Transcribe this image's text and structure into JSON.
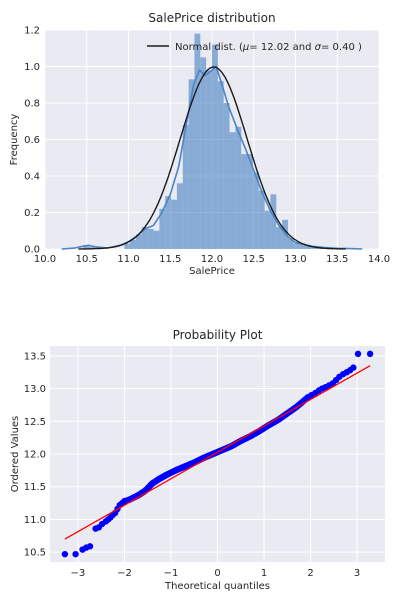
{
  "figure_title": "",
  "chart_data": [
    {
      "type": "bar",
      "title": "SalePrice distribution",
      "xlabel": "SalePrice",
      "ylabel": "Frequency",
      "xlim": [
        10.0,
        14.0
      ],
      "ylim": [
        0.0,
        1.2
      ],
      "xticks": [
        "10.0",
        "10.5",
        "11.0",
        "11.5",
        "12.0",
        "12.5",
        "13.0",
        "13.5",
        "14.0"
      ],
      "yticks": [
        "0.0",
        "0.2",
        "0.4",
        "0.6",
        "0.8",
        "1.0",
        "1.2"
      ],
      "grid": true,
      "legend_position": "top-right",
      "legend_label": "Normal dist. ($\\mu=$ 12.02 and $\\sigma=$ 0.40 )",
      "legend_mu": "12.02",
      "legend_sigma": "0.40",
      "hist_color": "#4c84c4",
      "bins": [
        {
          "x0": 10.46,
          "x1": 10.53,
          "height": 0.02
        },
        {
          "x0": 10.53,
          "x1": 10.6,
          "height": 0.01
        },
        {
          "x0": 10.95,
          "x1": 11.02,
          "height": 0.03
        },
        {
          "x0": 11.02,
          "x1": 11.09,
          "height": 0.05
        },
        {
          "x0": 11.09,
          "x1": 11.16,
          "height": 0.08
        },
        {
          "x0": 11.16,
          "x1": 11.23,
          "height": 0.12
        },
        {
          "x0": 11.23,
          "x1": 11.3,
          "height": 0.11
        },
        {
          "x0": 11.3,
          "x1": 11.37,
          "height": 0.1
        },
        {
          "x0": 11.37,
          "x1": 11.44,
          "height": 0.22
        },
        {
          "x0": 11.44,
          "x1": 11.51,
          "height": 0.29
        },
        {
          "x0": 11.51,
          "x1": 11.58,
          "height": 0.27
        },
        {
          "x0": 11.58,
          "x1": 11.65,
          "height": 0.36
        },
        {
          "x0": 11.65,
          "x1": 11.72,
          "height": 0.68
        },
        {
          "x0": 11.72,
          "x1": 11.79,
          "height": 0.93
        },
        {
          "x0": 11.79,
          "x1": 11.86,
          "height": 1.18
        },
        {
          "x0": 11.86,
          "x1": 11.93,
          "height": 1.05
        },
        {
          "x0": 11.93,
          "x1": 12.0,
          "height": 0.98
        },
        {
          "x0": 12.0,
          "x1": 12.07,
          "height": 1.12
        },
        {
          "x0": 12.07,
          "x1": 12.14,
          "height": 0.92
        },
        {
          "x0": 12.14,
          "x1": 12.21,
          "height": 0.8
        },
        {
          "x0": 12.21,
          "x1": 12.28,
          "height": 0.64
        },
        {
          "x0": 12.28,
          "x1": 12.35,
          "height": 0.67
        },
        {
          "x0": 12.35,
          "x1": 12.42,
          "height": 0.52
        },
        {
          "x0": 12.42,
          "x1": 12.49,
          "height": 0.52
        },
        {
          "x0": 12.49,
          "x1": 12.56,
          "height": 0.42
        },
        {
          "x0": 12.56,
          "x1": 12.63,
          "height": 0.32
        },
        {
          "x0": 12.63,
          "x1": 12.7,
          "height": 0.21
        },
        {
          "x0": 12.7,
          "x1": 12.77,
          "height": 0.3
        },
        {
          "x0": 12.77,
          "x1": 12.84,
          "height": 0.12
        },
        {
          "x0": 12.84,
          "x1": 12.91,
          "height": 0.16
        },
        {
          "x0": 12.91,
          "x1": 12.98,
          "height": 0.06
        },
        {
          "x0": 12.98,
          "x1": 13.05,
          "height": 0.03
        },
        {
          "x0": 13.05,
          "x1": 13.12,
          "height": 0.03
        },
        {
          "x0": 13.12,
          "x1": 13.19,
          "height": 0.02
        },
        {
          "x0": 13.19,
          "x1": 13.26,
          "height": 0.01
        },
        {
          "x0": 13.26,
          "x1": 13.33,
          "height": 0.01
        }
      ],
      "kde": {
        "color": "#4c84c4",
        "points": [
          [
            10.2,
            0.0
          ],
          [
            10.35,
            0.005
          ],
          [
            10.45,
            0.015
          ],
          [
            10.52,
            0.02
          ],
          [
            10.6,
            0.012
          ],
          [
            10.75,
            0.005
          ],
          [
            10.9,
            0.02
          ],
          [
            11.0,
            0.04
          ],
          [
            11.1,
            0.07
          ],
          [
            11.2,
            0.11
          ],
          [
            11.3,
            0.13
          ],
          [
            11.4,
            0.2
          ],
          [
            11.5,
            0.3
          ],
          [
            11.6,
            0.45
          ],
          [
            11.7,
            0.7
          ],
          [
            11.78,
            0.9
          ],
          [
            11.85,
            0.98
          ],
          [
            11.92,
            0.95
          ],
          [
            12.0,
            0.98
          ],
          [
            12.05,
            1.0
          ],
          [
            12.1,
            0.93
          ],
          [
            12.2,
            0.78
          ],
          [
            12.3,
            0.66
          ],
          [
            12.4,
            0.55
          ],
          [
            12.5,
            0.43
          ],
          [
            12.6,
            0.31
          ],
          [
            12.7,
            0.21
          ],
          [
            12.8,
            0.13
          ],
          [
            12.9,
            0.07
          ],
          [
            13.0,
            0.035
          ],
          [
            13.1,
            0.025
          ],
          [
            13.2,
            0.015
          ],
          [
            13.35,
            0.008
          ],
          [
            13.5,
            0.004
          ],
          [
            13.65,
            0.002
          ],
          [
            13.8,
            0.0
          ]
        ]
      },
      "normal_fit": {
        "mu": 12.02,
        "sigma": 0.4,
        "color": "#1a1a1a",
        "x_range": [
          10.4,
          13.6
        ]
      }
    },
    {
      "type": "scatter",
      "title": "Probability Plot",
      "xlabel": "Theoretical quantiles",
      "ylabel": "Ordered Values",
      "xlim": [
        -3.6,
        3.6
      ],
      "ylim": [
        10.35,
        13.65
      ],
      "xticks": [
        "−3",
        "−2",
        "−1",
        "0",
        "1",
        "2",
        "3"
      ],
      "yticks": [
        "10.5",
        "11.0",
        "11.5",
        "12.0",
        "12.5",
        "13.0",
        "13.5"
      ],
      "grid": true,
      "marker_color": "#0000ff",
      "line_color": "#ff0000",
      "fit_line": {
        "x0": -3.28,
        "y0": 10.7,
        "x1": 3.28,
        "y1": 13.35
      },
      "points_tail": [
        [
          -3.28,
          10.47
        ],
        [
          -3.05,
          10.47
        ],
        [
          -2.9,
          10.54
        ],
        [
          -2.82,
          10.57
        ],
        [
          -2.74,
          10.59
        ],
        [
          -2.62,
          10.86
        ],
        [
          -2.55,
          10.88
        ],
        [
          -2.48,
          10.93
        ],
        [
          -2.4,
          10.97
        ],
        [
          -2.35,
          11.0
        ],
        [
          -2.3,
          11.03
        ],
        [
          -2.25,
          11.07
        ],
        [
          -2.2,
          11.1
        ],
        [
          -2.15,
          11.16
        ],
        [
          -2.1,
          11.22
        ],
        [
          -2.05,
          11.25
        ],
        [
          -2.0,
          11.28
        ],
        [
          -1.95,
          11.29
        ],
        [
          -1.9,
          11.3
        ],
        [
          1.95,
          12.87
        ],
        [
          2.02,
          12.9
        ],
        [
          2.1,
          12.93
        ],
        [
          2.18,
          12.97
        ],
        [
          2.25,
          13.0
        ],
        [
          2.32,
          13.02
        ],
        [
          2.4,
          13.05
        ],
        [
          2.48,
          13.08
        ],
        [
          2.55,
          13.13
        ],
        [
          2.62,
          13.18
        ],
        [
          2.7,
          13.22
        ],
        [
          2.78,
          13.25
        ],
        [
          2.85,
          13.28
        ],
        [
          2.92,
          13.32
        ],
        [
          3.02,
          13.53
        ],
        [
          3.28,
          13.53
        ]
      ],
      "body_curve": [
        [
          -1.9,
          11.3
        ],
        [
          -1.7,
          11.37
        ],
        [
          -1.55,
          11.44
        ],
        [
          -1.4,
          11.55
        ],
        [
          -1.25,
          11.62
        ],
        [
          -1.1,
          11.68
        ],
        [
          -0.9,
          11.75
        ],
        [
          -0.7,
          11.81
        ],
        [
          -0.5,
          11.87
        ],
        [
          -0.3,
          11.94
        ],
        [
          -0.1,
          12.0
        ],
        [
          0.1,
          12.06
        ],
        [
          0.3,
          12.12
        ],
        [
          0.5,
          12.2
        ],
        [
          0.7,
          12.27
        ],
        [
          0.9,
          12.35
        ],
        [
          1.1,
          12.44
        ],
        [
          1.3,
          12.52
        ],
        [
          1.5,
          12.62
        ],
        [
          1.7,
          12.72
        ],
        [
          1.95,
          12.87
        ]
      ]
    }
  ]
}
